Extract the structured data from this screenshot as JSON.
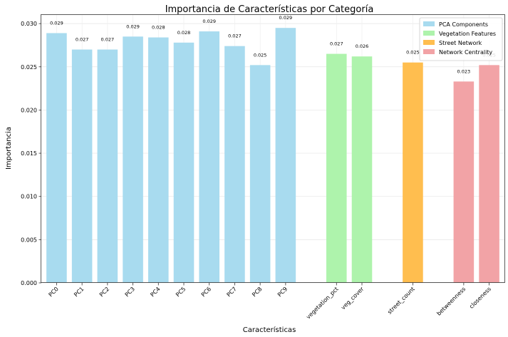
{
  "chart_data": {
    "type": "bar",
    "title": "Importancia de Características por Categoría",
    "xlabel": "Características",
    "ylabel": "Importancia",
    "ylim": [
      0,
      0.031
    ],
    "yticks": [
      "0.000",
      "0.005",
      "0.010",
      "0.015",
      "0.020",
      "0.025",
      "0.030"
    ],
    "grid": true,
    "legend_position": "top-right",
    "bars": [
      {
        "label": "PC0",
        "value": 0.0289,
        "value_label": "0.029",
        "series": "PCA Components"
      },
      {
        "label": "PC1",
        "value": 0.027,
        "value_label": "0.027",
        "series": "PCA Components"
      },
      {
        "label": "PC2",
        "value": 0.027,
        "value_label": "0.027",
        "series": "PCA Components"
      },
      {
        "label": "PC3",
        "value": 0.0285,
        "value_label": "0.029",
        "series": "PCA Components"
      },
      {
        "label": "PC4",
        "value": 0.0284,
        "value_label": "0.028",
        "series": "PCA Components"
      },
      {
        "label": "PC5",
        "value": 0.0278,
        "value_label": "0.028",
        "series": "PCA Components"
      },
      {
        "label": "PC6",
        "value": 0.0291,
        "value_label": "0.029",
        "series": "PCA Components"
      },
      {
        "label": "PC7",
        "value": 0.0274,
        "value_label": "0.027",
        "series": "PCA Components"
      },
      {
        "label": "PC8",
        "value": 0.0252,
        "value_label": "0.025",
        "series": "PCA Components"
      },
      {
        "label": "PC9",
        "value": 0.0295,
        "value_label": "0.029",
        "series": "PCA Components"
      },
      {
        "label": "vegetation_pct",
        "value": 0.0265,
        "value_label": "0.027",
        "series": "Vegetation Features"
      },
      {
        "label": "veg_cover",
        "value": 0.0262,
        "value_label": "0.026",
        "series": "Vegetation Features"
      },
      {
        "label": "street_count",
        "value": 0.0255,
        "value_label": "0.025",
        "series": "Street Network"
      },
      {
        "label": "betweenness",
        "value": 0.0233,
        "value_label": "0.023",
        "series": "Network Centrality"
      },
      {
        "label": "closeness",
        "value": 0.0252,
        "value_label": "0.025",
        "series": "Network Centrality"
      }
    ],
    "series": [
      {
        "name": "PCA Components",
        "color": "#a8dbef"
      },
      {
        "name": "Vegetation Features",
        "color": "#aef3ac"
      },
      {
        "name": "Street Network",
        "color": "#ffbe4f"
      },
      {
        "name": "Network Centrality",
        "color": "#f2a3a6"
      }
    ]
  }
}
